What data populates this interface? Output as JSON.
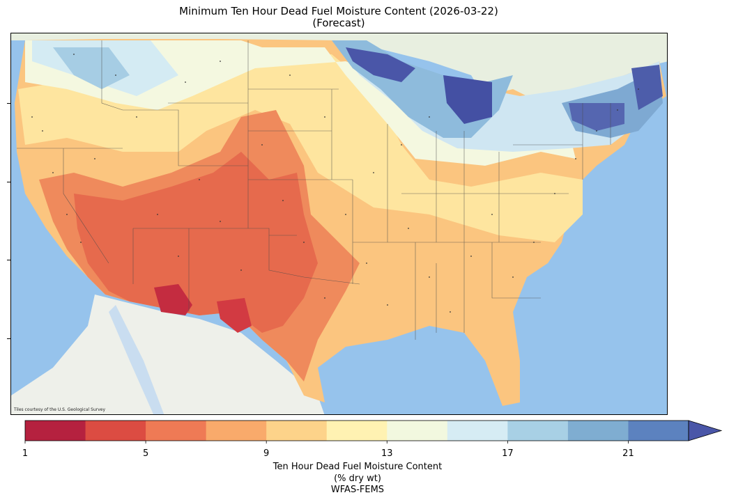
{
  "title": {
    "line1": "Minimum Ten Hour Dead Fuel Moisture Content (2026-03-22)",
    "line2": "(Forecast)"
  },
  "map": {
    "credit": "Tiles courtesy of the U.S. Geological Survey",
    "water_color": "#8ec1ea",
    "land_color": "#eef0ea"
  },
  "colorbar": {
    "label_line1": "Ten Hour Dead Fuel Moisture Content",
    "label_line2": "(% dry wt)",
    "label_line3": "WFAS-FEMS",
    "min": 1,
    "max": 23,
    "extend": "max",
    "boundaries": [
      1,
      3,
      5,
      7,
      9,
      11,
      13,
      15,
      17,
      19,
      21,
      23
    ],
    "colors": [
      "#b5213f",
      "#dc4c42",
      "#ef7a55",
      "#f9aa6b",
      "#fdd38a",
      "#fff2b2",
      "#f2f8df",
      "#d6ecf4",
      "#a8d0e5",
      "#7fadd1",
      "#5c82bf"
    ],
    "extend_color": "#4a56a8",
    "tick_labels": [
      "1",
      "5",
      "9",
      "13",
      "17",
      "21"
    ],
    "tick_values": [
      1,
      5,
      9,
      13,
      17,
      21
    ]
  }
}
